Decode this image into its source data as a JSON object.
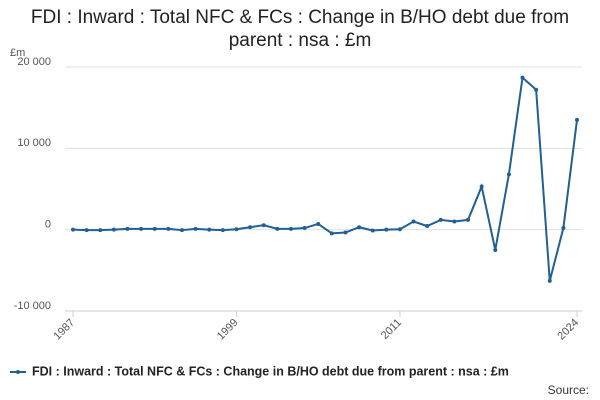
{
  "chart_data": {
    "type": "line",
    "title": "FDI : Inward : Total NFC & FCs : Change in B/HO debt due from parent : nsa : £m",
    "y_unit": "£m",
    "source": "Source:",
    "x": [
      1987,
      1988,
      1989,
      1990,
      1991,
      1992,
      1993,
      1994,
      1995,
      1996,
      1997,
      1998,
      1999,
      2000,
      2001,
      2002,
      2003,
      2004,
      2005,
      2006,
      2007,
      2008,
      2009,
      2010,
      2011,
      2012,
      2013,
      2014,
      2015,
      2016,
      2017,
      2018,
      2019,
      2020,
      2021,
      2022,
      2023,
      2024
    ],
    "series": [
      {
        "name": "FDI : Inward : Total NFC & FCs : Change in B/HO debt due from parent : nsa : £m",
        "color": "#206095",
        "values": [
          0,
          -50,
          -50,
          0,
          100,
          100,
          100,
          100,
          -50,
          100,
          0,
          -50,
          50,
          300,
          550,
          100,
          100,
          200,
          700,
          -450,
          -350,
          300,
          -100,
          0,
          50,
          1000,
          450,
          1200,
          1000,
          1200,
          5300,
          -2500,
          6800,
          18700,
          17200,
          -6300,
          200,
          13500
        ]
      }
    ],
    "xlim": [
      1987,
      2024
    ],
    "xticks": [
      1987,
      1999,
      2011,
      2024
    ],
    "ylim": [
      -10000,
      20000
    ],
    "yticks": [
      {
        "value": -10000,
        "label": "-10 000"
      },
      {
        "value": 0,
        "label": "0"
      },
      {
        "value": 10000,
        "label": "10 000"
      },
      {
        "value": 20000,
        "label": "20 000"
      }
    ],
    "grid": true
  }
}
